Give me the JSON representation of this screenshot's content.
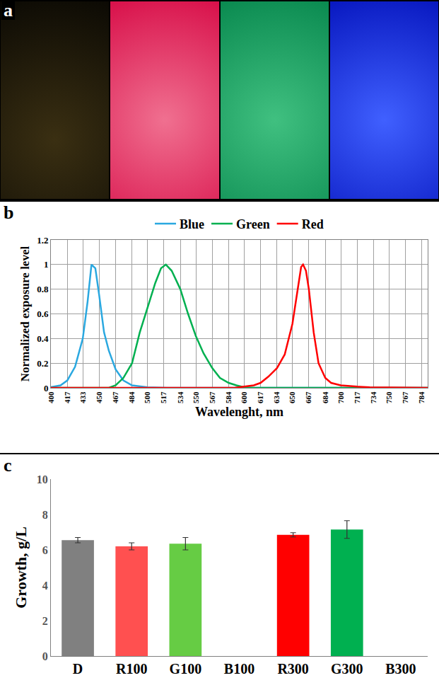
{
  "panel_a": {
    "label": "a"
  },
  "chart_data": [
    {
      "label": "b",
      "type": "line",
      "xlabel": "Wavelenght, nm",
      "ylabel": "Normalized exposure level",
      "xlim": [
        400,
        790
      ],
      "xticks": [
        400,
        417,
        433,
        450,
        467,
        484,
        500,
        517,
        534,
        550,
        567,
        584,
        600,
        617,
        634,
        650,
        667,
        684,
        700,
        717,
        734,
        750,
        767,
        784
      ],
      "ylim": [
        0,
        1.2
      ],
      "yticks": [
        0,
        0.2,
        0.4,
        0.6,
        0.8,
        1,
        1.2
      ],
      "grid": true,
      "legend": "top",
      "series": [
        {
          "name": "Blue",
          "color": "#2aa8e0",
          "x": [
            400,
            410,
            417,
            425,
            433,
            438,
            442,
            446,
            450,
            455,
            460,
            467,
            475,
            484,
            500,
            520,
            790
          ],
          "values": [
            0.005,
            0.02,
            0.06,
            0.17,
            0.4,
            0.7,
            1.0,
            0.97,
            0.75,
            0.45,
            0.3,
            0.15,
            0.06,
            0.02,
            0.005,
            0,
            0
          ]
        },
        {
          "name": "Green",
          "color": "#00b050",
          "x": [
            400,
            460,
            467,
            475,
            484,
            492,
            500,
            508,
            514,
            519,
            525,
            534,
            542,
            550,
            558,
            567,
            575,
            584,
            592,
            600,
            610,
            790
          ],
          "values": [
            0,
            0,
            0.02,
            0.08,
            0.2,
            0.45,
            0.65,
            0.85,
            0.97,
            1.0,
            0.95,
            0.8,
            0.6,
            0.42,
            0.28,
            0.16,
            0.08,
            0.04,
            0.02,
            0.005,
            0,
            0
          ]
        },
        {
          "name": "Red",
          "color": "#ff0000",
          "x": [
            400,
            590,
            600,
            610,
            617,
            625,
            634,
            642,
            650,
            655,
            659,
            661,
            664,
            667,
            672,
            677,
            684,
            690,
            700,
            717,
            730,
            790
          ],
          "values": [
            0,
            0,
            0.01,
            0.02,
            0.04,
            0.09,
            0.16,
            0.27,
            0.52,
            0.78,
            0.98,
            1.0,
            0.95,
            0.8,
            0.45,
            0.2,
            0.08,
            0.04,
            0.02,
            0.01,
            0.005,
            0
          ]
        }
      ]
    },
    {
      "label": "c",
      "type": "bar",
      "ylabel": "Growth, g/L",
      "categories": [
        "D",
        "R100",
        "G100",
        "B100",
        "R300",
        "G300",
        "B300"
      ],
      "values": [
        6.55,
        6.2,
        6.35,
        null,
        6.85,
        7.15,
        null
      ],
      "errors": [
        0.15,
        0.2,
        0.35,
        null,
        0.12,
        0.5,
        null
      ],
      "colors": [
        "#808080",
        "#ff5050",
        "#66cc44",
        null,
        "#ff0000",
        "#00b050",
        null
      ],
      "ylim": [
        0,
        10
      ],
      "yticks": [
        0,
        2,
        4,
        6,
        8,
        10
      ],
      "grid": false
    }
  ]
}
